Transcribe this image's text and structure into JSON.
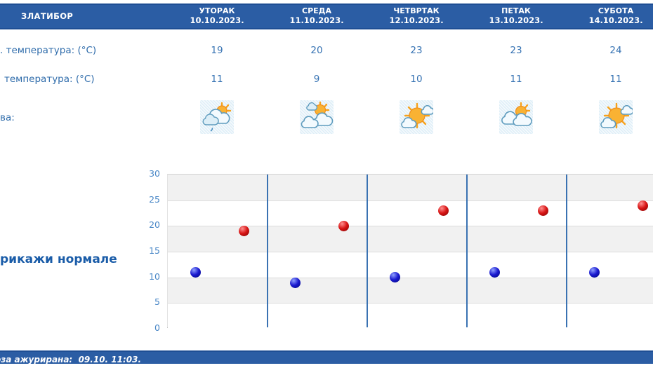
{
  "header": {
    "location": "ЗЛАТИБОР",
    "days": [
      {
        "name": "УТОРАК",
        "date": "10.10.2023."
      },
      {
        "name": "СРЕДА",
        "date": "11.10.2023."
      },
      {
        "name": "ЧЕТВРТАК",
        "date": "12.10.2023."
      },
      {
        "name": "ПЕТАК",
        "date": "13.10.2023."
      },
      {
        "name": "СУБОТА",
        "date": "14.10.2023."
      }
    ]
  },
  "rows": {
    "max_label": ". температура: (°C)",
    "min_label": "температура: (°C)",
    "icons_label": "ва:"
  },
  "days": [
    {
      "max": "19",
      "min": "11",
      "icon": "sun-behind-clouds-light-rain-icon"
    },
    {
      "max": "20",
      "min": "9",
      "icon": "sun-with-clouds-icon"
    },
    {
      "max": "23",
      "min": "10",
      "icon": "sunny-with-small-clouds-icon"
    },
    {
      "max": "23",
      "min": "11",
      "icon": "clouds-sun-peeking-icon"
    },
    {
      "max": "24",
      "min": "11",
      "icon": "sunny-with-small-clouds-icon"
    }
  ],
  "links": {
    "show_normals": "рикажи нормале"
  },
  "footer": {
    "updated": "оза ажурирана:  09.10. 11:03."
  },
  "colors": {
    "header_blue": "#2b5da4",
    "header_border": "#1e4e94",
    "text_blue": "#3773b3",
    "label_blue": "#2f6cab",
    "link_blue": "#1a5ca8",
    "axis_label_blue": "#4886c6",
    "separator_blue": "#3a72b2",
    "band_gray": "#f1f1f1",
    "min_point": "#1a1ad0",
    "max_point": "#d81515"
  },
  "chart_data": {
    "type": "scatter",
    "title": "",
    "xlabel": "",
    "ylabel": "",
    "categories": [
      "10.10.2023.",
      "11.10.2023.",
      "12.10.2023.",
      "13.10.2023.",
      "14.10.2023."
    ],
    "series": [
      {
        "name": "Мин. температура (°C)",
        "color": "#1a1ad0",
        "highlight": "#8fa0ff",
        "dark": "#00067a",
        "values": [
          11,
          9,
          10,
          11,
          11
        ]
      },
      {
        "name": "Макс. температура (°C)",
        "color": "#d81515",
        "highlight": "#ff9090",
        "dark": "#7d0000",
        "values": [
          19,
          20,
          23,
          23,
          24
        ]
      }
    ],
    "ylim": [
      0,
      30
    ],
    "ytick_step": 5,
    "grid": "horizontal-bands",
    "band_colors": [
      "#f1f1f1",
      "#ffffff"
    ],
    "separator_color": "#3a72b2",
    "legend": "none"
  }
}
